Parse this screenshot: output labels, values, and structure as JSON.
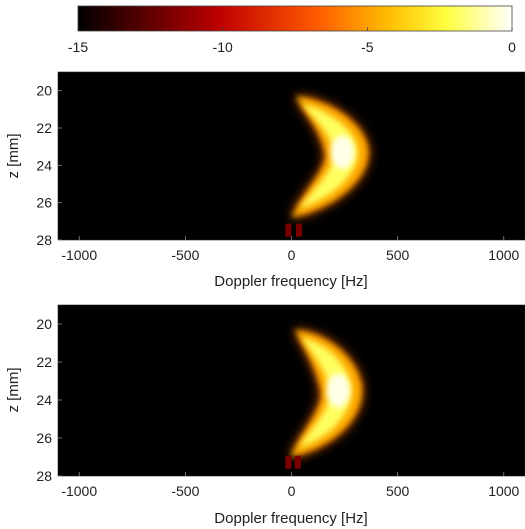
{
  "chart_data": [
    {
      "type": "colorbar",
      "colormap": "hot",
      "range": [
        -15,
        0
      ],
      "tick_labels": [
        "-15",
        "-10",
        "-5",
        "0"
      ],
      "tick_values": [
        -15,
        -10,
        -5,
        0
      ]
    },
    {
      "type": "heatmap",
      "xlabel": "Doppler frequency [Hz]",
      "ylabel": "z [mm]",
      "xlim": [
        -1100,
        1100
      ],
      "ylim": [
        19.0,
        28.0
      ],
      "x_ticks": [
        -1000,
        -500,
        0,
        500,
        1000
      ],
      "x_tick_labels": [
        "-1000",
        "-500",
        "0",
        "500",
        "1000"
      ],
      "y_ticks": [
        20,
        22,
        24,
        26,
        28
      ],
      "y_tick_labels": [
        "20",
        "22",
        "24",
        "26",
        "28"
      ],
      "background_value_dB": -15,
      "feature": {
        "shape": "crescent",
        "z_range_mm": [
          20.3,
          26.8
        ],
        "peak": {
          "z_mm": 23.3,
          "frequency_hz": 240,
          "value_dB": 0
        },
        "outer_edge_hz_at_peak": 360,
        "tips_frequency_hz": 20,
        "low_speckle": {
          "z_mm": 27.5,
          "frequency_hz": [
            -15,
            35
          ],
          "value_dB": -13
        }
      }
    },
    {
      "type": "heatmap",
      "xlabel": "Doppler frequency [Hz]",
      "ylabel": "z [mm]",
      "xlim": [
        -1100,
        1100
      ],
      "ylim": [
        19.0,
        28.0
      ],
      "x_ticks": [
        -1000,
        -500,
        0,
        500,
        1000
      ],
      "x_tick_labels": [
        "-1000",
        "-500",
        "0",
        "500",
        "1000"
      ],
      "y_ticks": [
        20,
        22,
        24,
        26,
        28
      ],
      "y_tick_labels": [
        "20",
        "22",
        "24",
        "26",
        "28"
      ],
      "background_value_dB": -15,
      "feature": {
        "shape": "crescent",
        "z_range_mm": [
          20.3,
          27.0
        ],
        "peak": {
          "z_mm": 23.5,
          "frequency_hz": 220,
          "value_dB": 0
        },
        "outer_edge_hz_at_peak": 330,
        "tips_frequency_hz": 15,
        "low_speckle": {
          "z_mm": 27.3,
          "frequency_hz": [
            -15,
            30
          ],
          "value_dB": -13
        }
      }
    }
  ]
}
